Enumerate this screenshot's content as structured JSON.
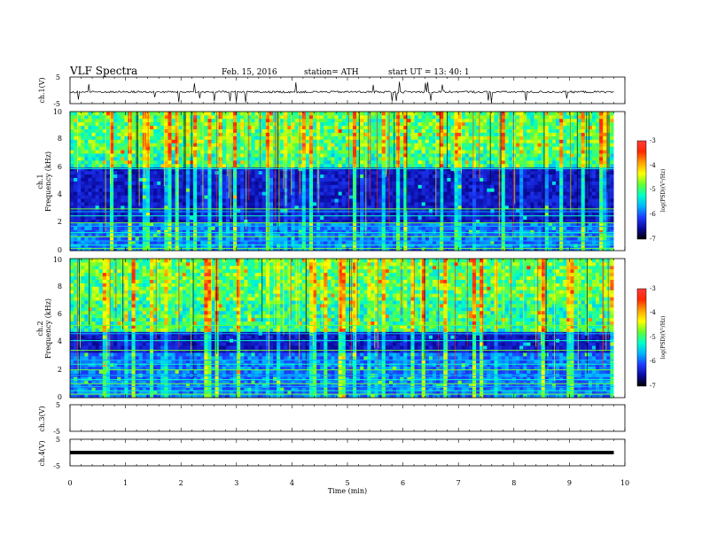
{
  "header": {
    "title": "VLF  Spectra",
    "date": "Feb. 15, 2016",
    "station": "station= ATH",
    "start": "start  UT  =    13: 40: 1"
  },
  "chart_data": [
    {
      "type": "line",
      "panel": "ch1-waveform",
      "ylabel": "ch.1(V)",
      "yticks": [
        "5",
        "-5"
      ],
      "ylim": [
        -5,
        5
      ],
      "baseline": -0.6,
      "color": "#000000"
    },
    {
      "type": "heatmap",
      "panel": "ch1-spectrogram",
      "ylabel_channel": "ch.1",
      "ylabel": "Frequency  (kHz)",
      "yticks": [
        "0",
        "2",
        "4",
        "6",
        "8",
        "10"
      ],
      "ylim": [
        0,
        10
      ],
      "xlim": [
        0,
        9.8
      ],
      "dark_band_khz": [
        2,
        6
      ],
      "horizontal_lines_khz": [
        0.15,
        0.4,
        0.7,
        1.0,
        1.3,
        1.75,
        2.0,
        2.5,
        2.8,
        3.0,
        5.9
      ],
      "colorbar": {
        "label": "log(PSD)(V²/Hz)",
        "ticks": [
          "-3",
          "-4",
          "-5",
          "-6",
          "-7"
        ],
        "range": [
          -7,
          -3
        ]
      }
    },
    {
      "type": "heatmap",
      "panel": "ch2-spectrogram",
      "ylabel_channel": "ch.2",
      "ylabel": "Frequency  (kHz)",
      "yticks": [
        "0",
        "2",
        "4",
        "6",
        "8",
        "10"
      ],
      "ylim": [
        0,
        10
      ],
      "xlim": [
        0,
        9.8
      ],
      "dark_band_khz": [
        3.2,
        4.8
      ],
      "horizontal_lines_khz": [
        0.25,
        0.5,
        0.8,
        1.0,
        1.3,
        1.6,
        2.0,
        2.4,
        2.7,
        3.4,
        4.1,
        4.6,
        5.2
      ],
      "colorbar": {
        "label": "log(PSD)(V²/Hz)",
        "ticks": [
          "-3",
          "-4",
          "-5",
          "-6",
          "-7"
        ],
        "range": [
          -7,
          -3
        ]
      }
    },
    {
      "type": "line",
      "panel": "ch3-waveform",
      "ylabel": "ch.3(V)",
      "yticks": [
        "5",
        "-5"
      ],
      "ylim": [
        -5,
        5
      ],
      "values": []
    },
    {
      "type": "line",
      "panel": "ch4-waveform",
      "ylabel": "ch.4(V)",
      "yticks": [
        "5",
        "-5"
      ],
      "ylim": [
        -5,
        5
      ],
      "baseline": 0,
      "color": "#000000"
    }
  ],
  "xaxis": {
    "label": "Time  (min)",
    "ticks": [
      0,
      1,
      2,
      3,
      4,
      5,
      6,
      7,
      8,
      9,
      10
    ],
    "xlim": [
      0,
      10
    ]
  },
  "colormap": [
    "#000000",
    "#0a0aa0",
    "#1e3cff",
    "#00b4ff",
    "#00ffc8",
    "#64ff32",
    "#ffff00",
    "#ffa000",
    "#ff2800",
    "#ff3c3c",
    "#ffc8c8",
    "#ffffff"
  ]
}
